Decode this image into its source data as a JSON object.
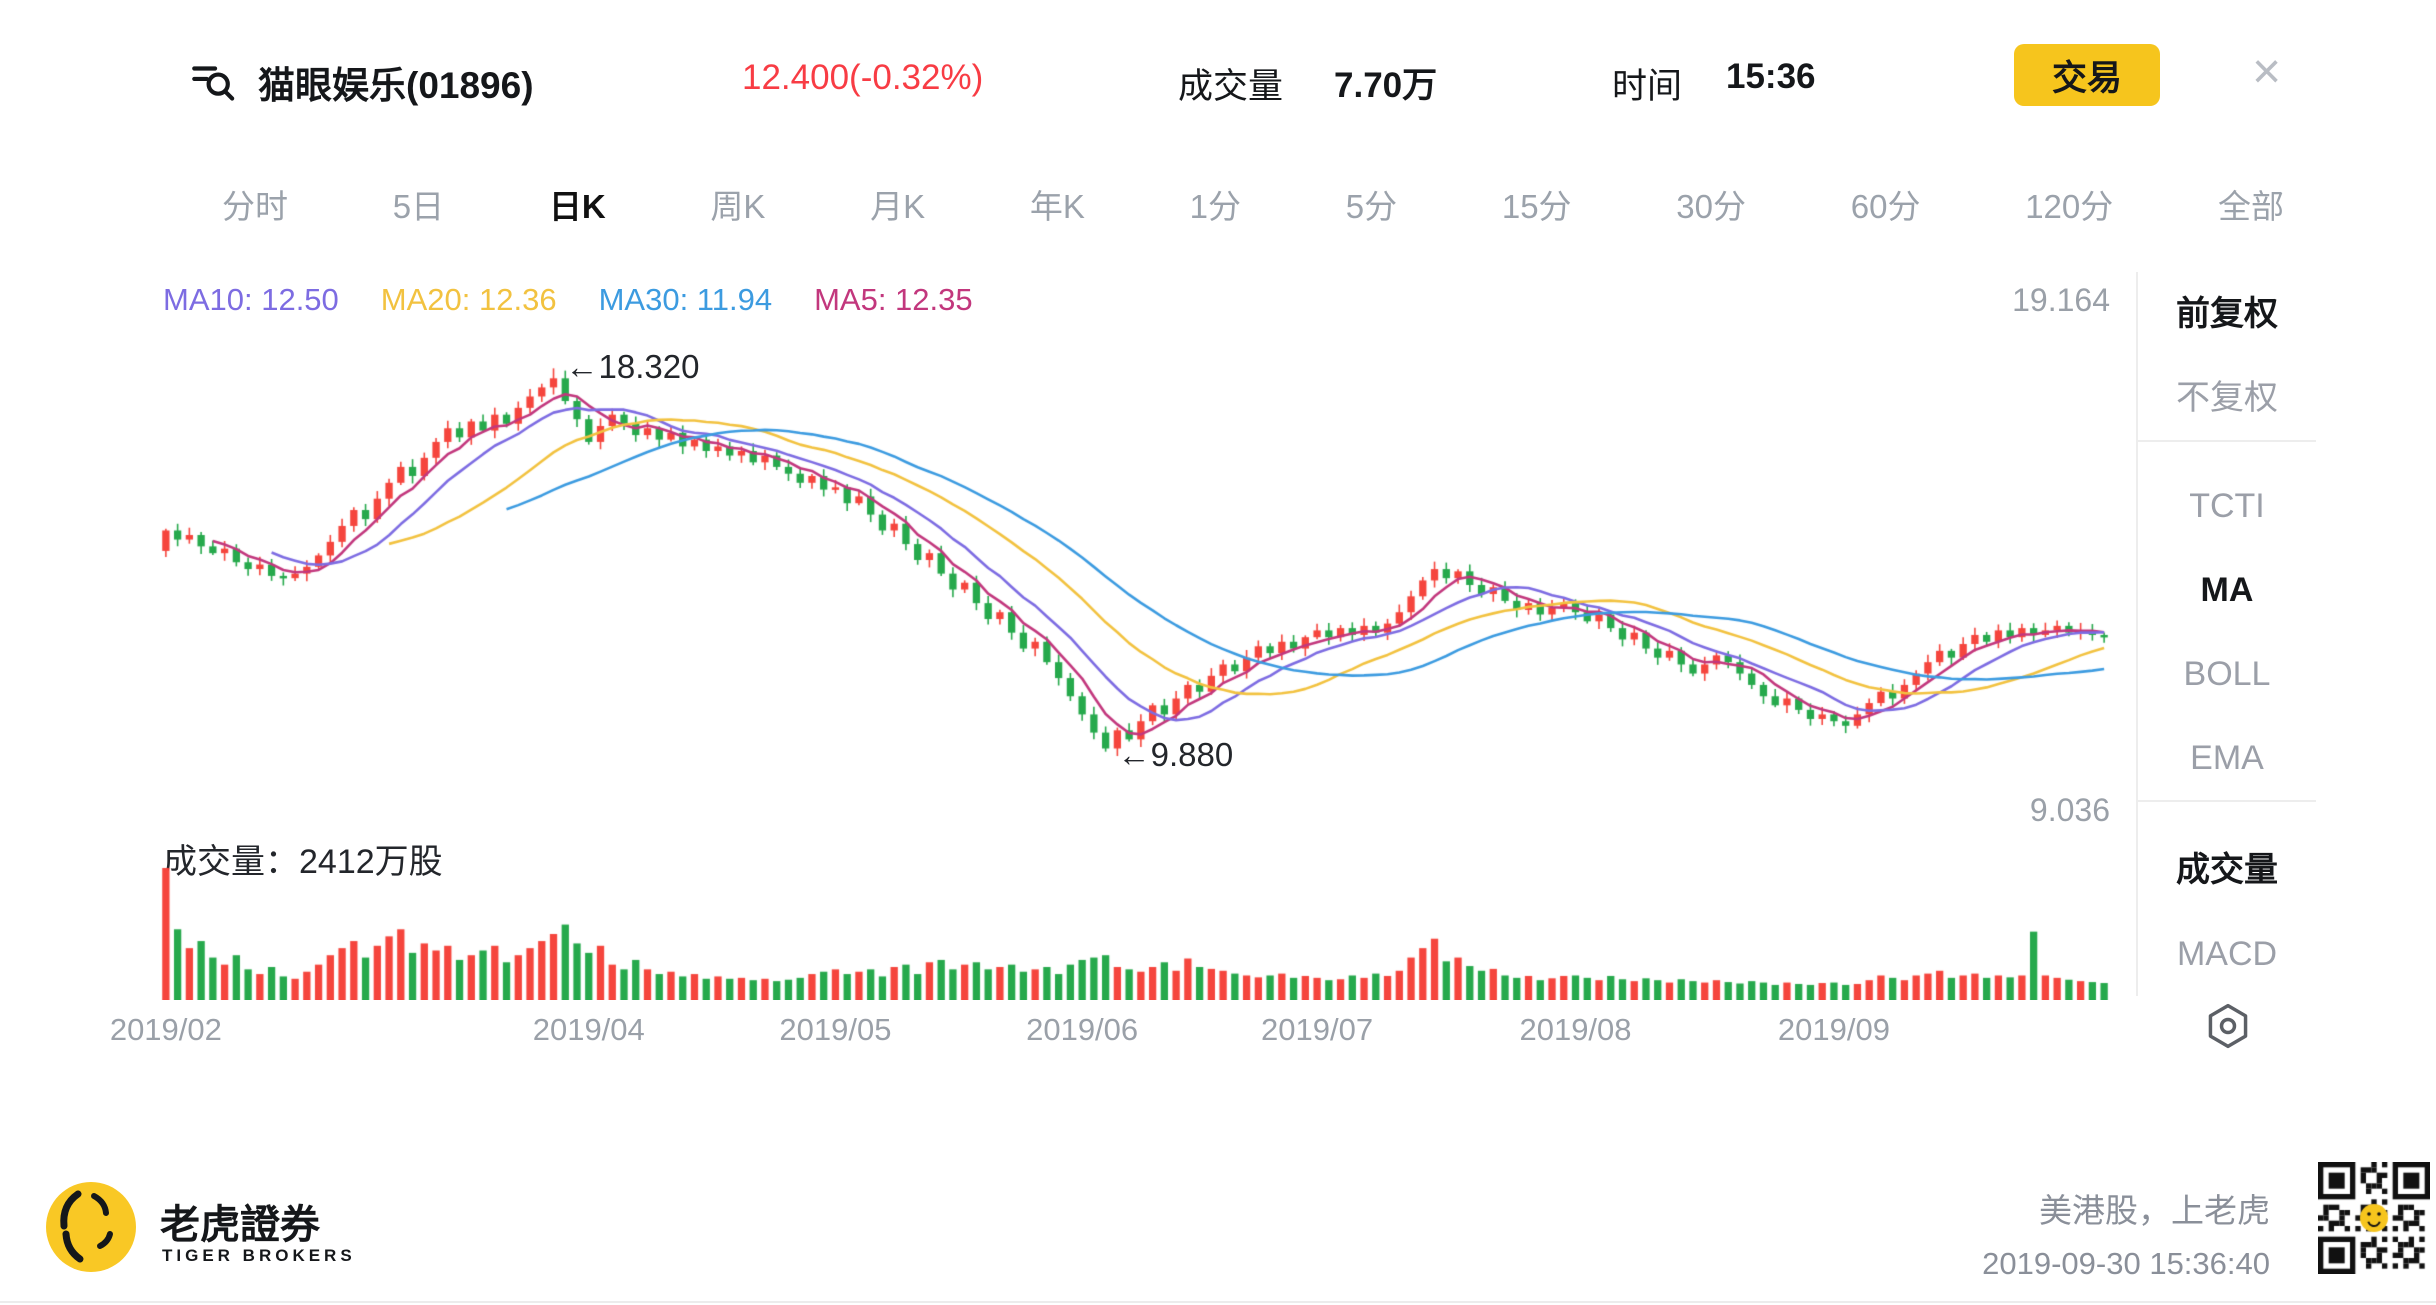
{
  "header": {
    "stock_name": "猫眼娱乐(01896)",
    "price": "12.400(-0.32%)",
    "volume_label": "成交量",
    "volume_value": "7.70万",
    "time_label": "时间",
    "time_value": "15:36",
    "trade_button": "交易",
    "close_glyph": "×"
  },
  "tabs": {
    "items": [
      {
        "label": "分时",
        "name": "tab-timeline",
        "active": false
      },
      {
        "label": "5日",
        "name": "tab-5-day",
        "active": false
      },
      {
        "label": "日K",
        "name": "tab-daily-k",
        "active": true
      },
      {
        "label": "周K",
        "name": "tab-weekly-k",
        "active": false
      },
      {
        "label": "月K",
        "name": "tab-monthly-k",
        "active": false
      },
      {
        "label": "年K",
        "name": "tab-yearly-k",
        "active": false
      },
      {
        "label": "1分",
        "name": "tab-1-min",
        "active": false
      },
      {
        "label": "5分",
        "name": "tab-5-min",
        "active": false
      },
      {
        "label": "15分",
        "name": "tab-15-min",
        "active": false
      },
      {
        "label": "30分",
        "name": "tab-30-min",
        "active": false
      },
      {
        "label": "60分",
        "name": "tab-60-min",
        "active": false
      },
      {
        "label": "120分",
        "name": "tab-120-min",
        "active": false
      },
      {
        "label": "全部",
        "name": "tab-all",
        "active": false
      }
    ]
  },
  "legend": {
    "items": [
      {
        "label": "MA10: 12.50",
        "name": "ma10-legend",
        "color": "#7d6ce2"
      },
      {
        "label": "MA20: 12.36",
        "name": "ma20-legend",
        "color": "#f2c240"
      },
      {
        "label": "MA30: 11.94",
        "name": "ma30-legend",
        "color": "#3c9be0"
      },
      {
        "label": "MA5: 12.35",
        "name": "ma5-legend",
        "color": "#c2377d"
      }
    ]
  },
  "y_axis": {
    "high": "19.164",
    "low": "9.036"
  },
  "annotations": {
    "peak": "←18.320",
    "trough": "←9.880"
  },
  "volume_section": {
    "label": "成交量：2412万股"
  },
  "sidebar": {
    "groups": [
      {
        "items": [
          {
            "label": "前复权",
            "name": "forward-adjusted",
            "active": true
          },
          {
            "label": "不复权",
            "name": "no-adjust",
            "active": false
          }
        ]
      },
      {
        "items": [
          {
            "label": "TCTI",
            "name": "tcti",
            "active": false
          },
          {
            "label": "MA",
            "name": "ma",
            "active": true
          },
          {
            "label": "BOLL",
            "name": "boll",
            "active": false
          },
          {
            "label": "EMA",
            "name": "ema",
            "active": false
          }
        ]
      },
      {
        "items": [
          {
            "label": "成交量",
            "name": "volume-indicator",
            "active": true
          },
          {
            "label": "MACD",
            "name": "macd",
            "active": false
          }
        ]
      }
    ]
  },
  "footer": {
    "brand_cn": "老虎證券",
    "brand_en": "TIGER BROKERS",
    "slogan": "美港股，上老虎",
    "timestamp": "2019-09-30 15:36:40"
  },
  "chart_data": {
    "type": "candlestick+volume",
    "title": "猫眼娱乐(01896) 日K 前复权",
    "y_range": [
      9.036,
      19.164
    ],
    "up_color": "#f5453d",
    "down_color": "#26a94c",
    "first_open": 14.3,
    "peak": {
      "index": 33,
      "high": 18.32,
      "label": "18.320"
    },
    "trough": {
      "index": 80,
      "low": 9.88,
      "label": "9.880"
    },
    "ma": [
      {
        "period": 5,
        "color": "#c2377d"
      },
      {
        "period": 10,
        "color": "#7d6ce2"
      },
      {
        "period": 20,
        "color": "#f2c240"
      },
      {
        "period": 30,
        "color": "#3c9be0"
      }
    ],
    "x_ticks": [
      {
        "label": "2019/02",
        "index": 0
      },
      {
        "label": "2019/04",
        "index": 36
      },
      {
        "label": "2019/05",
        "index": 57
      },
      {
        "label": "2019/06",
        "index": 78
      },
      {
        "label": "2019/07",
        "index": 98
      },
      {
        "label": "2019/08",
        "index": 120
      },
      {
        "label": "2019/09",
        "index": 142
      }
    ],
    "closes": [
      14.75,
      14.55,
      14.65,
      14.4,
      14.25,
      14.35,
      14.05,
      13.9,
      14.0,
      13.75,
      13.7,
      13.8,
      13.95,
      14.2,
      14.5,
      14.85,
      15.2,
      15.0,
      15.45,
      15.8,
      16.15,
      15.95,
      16.35,
      16.7,
      17.0,
      16.8,
      17.15,
      16.95,
      17.3,
      17.1,
      17.45,
      17.7,
      17.9,
      18.1,
      17.6,
      17.2,
      16.7,
      17.05,
      17.3,
      17.1,
      16.85,
      17.0,
      16.75,
      16.9,
      16.6,
      16.75,
      16.5,
      16.6,
      16.4,
      16.5,
      16.25,
      16.4,
      16.15,
      16.0,
      15.8,
      15.95,
      15.65,
      15.7,
      15.35,
      15.5,
      15.1,
      14.75,
      14.9,
      14.45,
      14.1,
      14.25,
      13.8,
      13.45,
      13.6,
      13.15,
      12.8,
      12.95,
      12.5,
      12.15,
      12.3,
      11.85,
      11.5,
      11.1,
      10.7,
      10.3,
      9.95,
      10.35,
      10.15,
      10.55,
      10.9,
      10.7,
      11.05,
      11.35,
      11.2,
      11.55,
      11.8,
      11.65,
      11.95,
      12.2,
      12.05,
      12.3,
      12.15,
      12.4,
      12.55,
      12.4,
      12.6,
      12.45,
      12.65,
      12.5,
      12.7,
      12.95,
      13.3,
      13.65,
      13.9,
      13.7,
      13.85,
      13.55,
      13.35,
      13.5,
      13.2,
      13.0,
      13.15,
      12.9,
      13.05,
      13.15,
      12.95,
      12.75,
      12.9,
      12.6,
      12.35,
      12.5,
      12.15,
      11.95,
      12.1,
      11.8,
      11.6,
      11.8,
      12.0,
      11.85,
      11.6,
      11.35,
      11.1,
      10.9,
      11.05,
      10.8,
      10.6,
      10.7,
      10.55,
      10.45,
      10.7,
      10.95,
      11.2,
      11.05,
      11.35,
      11.6,
      11.85,
      12.1,
      11.95,
      12.25,
      12.45,
      12.3,
      12.55,
      12.4,
      12.6,
      12.45,
      12.55,
      12.65,
      12.5,
      12.55,
      12.45,
      12.4
    ],
    "volumes": [
      2800,
      1500,
      1100,
      1250,
      900,
      750,
      950,
      650,
      550,
      700,
      500,
      450,
      600,
      750,
      950,
      1100,
      1250,
      900,
      1150,
      1350,
      1500,
      1000,
      1200,
      1050,
      1150,
      850,
      950,
      1050,
      1150,
      800,
      950,
      1100,
      1250,
      1400,
      1600,
      1200,
      1000,
      1150,
      750,
      650,
      850,
      650,
      550,
      600,
      500,
      550,
      450,
      500,
      450,
      470,
      420,
      450,
      400,
      430,
      470,
      550,
      600,
      650,
      550,
      600,
      650,
      500,
      700,
      750,
      550,
      800,
      850,
      650,
      750,
      800,
      650,
      700,
      750,
      600,
      650,
      700,
      550,
      750,
      850,
      900,
      950,
      700,
      650,
      600,
      700,
      800,
      620,
      880,
      700,
      660,
      620,
      560,
      520,
      480,
      520,
      560,
      470,
      510,
      470,
      420,
      440,
      520,
      470,
      560,
      510,
      620,
      900,
      1100,
      1300,
      820,
      900,
      720,
      620,
      660,
      520,
      470,
      510,
      420,
      460,
      510,
      520,
      470,
      420,
      510,
      440,
      400,
      460,
      420,
      370,
      440,
      400,
      370,
      420,
      380,
      350,
      400,
      370,
      320,
      370,
      340,
      320,
      360,
      370,
      320,
      340,
      420,
      520,
      470,
      420,
      520,
      560,
      620,
      470,
      520,
      560,
      470,
      520,
      480,
      520,
      1450,
      520,
      470,
      430,
      400,
      380,
      360
    ]
  }
}
